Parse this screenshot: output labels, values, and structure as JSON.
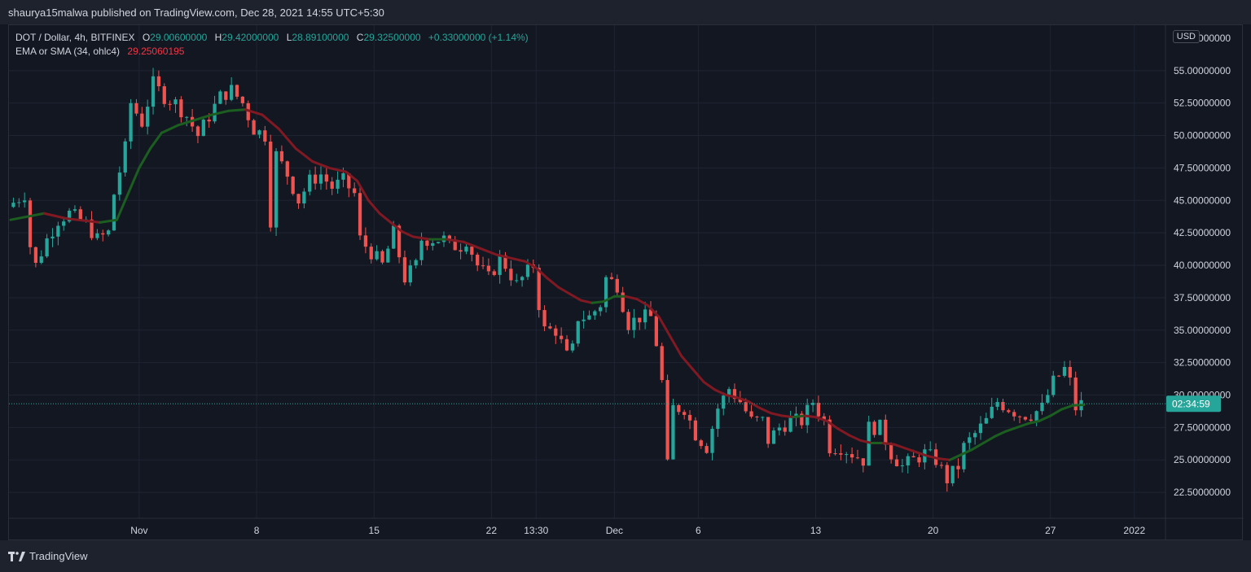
{
  "header": {
    "published": "shaurya15malwa published on TradingView.com, Dec 28, 2021 14:55 UTC+5:30"
  },
  "legend": {
    "symbol": "DOT / Dollar, 4h, BITFINEX",
    "o_label": "O",
    "o_value": "29.00600000",
    "h_label": "H",
    "h_value": "29.42000000",
    "l_label": "L",
    "l_value": "28.89100000",
    "c_label": "C",
    "c_value": "29.32500000",
    "change": "+0.33000000 (+1.14%)",
    "indicator_label": "EMA or SMA (34, ohlc4)",
    "indicator_value": "29.25060195"
  },
  "currency_badge": "USD",
  "footer": {
    "brand": "TradingView"
  },
  "colors": {
    "background": "#131722",
    "grid": "#1f2433",
    "up": "#26a69a",
    "down": "#ef5350",
    "ma_up": "#1b5e20",
    "ma_down": "#801922",
    "price_tag": "#26a69a",
    "text": "#d1d4dc"
  },
  "chart_data": {
    "type": "candlestick",
    "symbol": "DOT / Dollar",
    "interval": "4h",
    "exchange": "BITFINEX",
    "ylim": [
      20.5,
      58.5
    ],
    "y_ticks": [
      22.5,
      25,
      27.5,
      30,
      32.5,
      35,
      37.5,
      40,
      42.5,
      45,
      47.5,
      50,
      52.5,
      55
    ],
    "y_tick_labels": [
      "22.50000000",
      "25.00000000",
      "27.50000000",
      "30.00000000",
      "32.50000000",
      "35.00000000",
      "37.50000000",
      "40.00000000",
      "42.50000000",
      "45.00000000",
      "47.50000000",
      "50.00000000",
      "52.50000000",
      "55.00000000"
    ],
    "y_top_label_partial": "57.50000000",
    "x_ticks": [
      {
        "label": "Nov",
        "t": 23
      },
      {
        "label": "8",
        "t": 44
      },
      {
        "label": "15",
        "t": 65
      },
      {
        "label": "22",
        "t": 86
      },
      {
        "label": "13:30",
        "t": 94
      },
      {
        "label": "Dec",
        "t": 108
      },
      {
        "label": "6",
        "t": 123
      },
      {
        "label": "13",
        "t": 144
      },
      {
        "label": "20",
        "t": 165
      },
      {
        "label": "27",
        "t": 186
      },
      {
        "label": "2022",
        "t": 201
      }
    ],
    "close_path": [
      [
        0,
        44.5
      ],
      [
        3,
        45.5
      ],
      [
        4,
        41.5
      ],
      [
        5,
        40
      ],
      [
        7,
        42
      ],
      [
        9,
        43.5
      ],
      [
        11,
        44
      ],
      [
        14,
        43.2
      ],
      [
        16,
        42
      ],
      [
        18,
        42.5
      ],
      [
        19,
        45.5
      ],
      [
        21,
        49
      ],
      [
        22,
        52.5
      ],
      [
        24,
        51
      ],
      [
        26,
        54
      ],
      [
        28,
        53
      ],
      [
        30,
        52.5
      ],
      [
        32,
        51.5
      ],
      [
        34,
        50
      ],
      [
        36,
        51.5
      ],
      [
        38,
        53
      ],
      [
        40,
        53.5
      ],
      [
        42,
        52.5
      ],
      [
        44,
        50.5
      ],
      [
        46,
        50
      ],
      [
        47,
        43.5
      ],
      [
        48,
        48.5
      ],
      [
        50,
        47
      ],
      [
        52,
        45
      ],
      [
        54,
        46.5
      ],
      [
        56,
        47
      ],
      [
        58,
        46
      ],
      [
        60,
        46.5
      ],
      [
        62,
        45.5
      ],
      [
        63,
        42
      ],
      [
        65,
        41
      ],
      [
        67,
        40
      ],
      [
        69,
        42.5
      ],
      [
        71,
        39
      ],
      [
        73,
        40
      ],
      [
        74,
        42
      ],
      [
        76,
        42
      ],
      [
        78,
        42
      ],
      [
        79,
        41.5
      ],
      [
        81,
        41.5
      ],
      [
        82,
        42
      ],
      [
        84,
        40
      ],
      [
        86,
        39
      ],
      [
        88,
        40.5
      ],
      [
        89,
        40
      ],
      [
        91,
        38.5
      ],
      [
        93,
        39.5
      ],
      [
        94,
        40
      ],
      [
        95,
        37
      ],
      [
        96,
        35
      ],
      [
        98,
        35
      ],
      [
        100,
        33
      ],
      [
        101,
        33.5
      ],
      [
        102,
        36
      ],
      [
        104,
        36
      ],
      [
        106,
        37
      ],
      [
        107,
        39
      ],
      [
        109,
        38.5
      ],
      [
        111,
        35.5
      ],
      [
        113,
        36
      ],
      [
        115,
        36
      ],
      [
        116,
        34
      ],
      [
        117,
        31
      ],
      [
        118,
        24.5
      ],
      [
        119,
        29
      ],
      [
        121,
        29
      ],
      [
        123,
        27
      ],
      [
        125,
        26
      ],
      [
        127,
        29
      ],
      [
        129,
        30.5
      ],
      [
        131,
        29.5
      ],
      [
        133,
        28
      ],
      [
        135,
        28
      ],
      [
        136,
        26.5
      ],
      [
        138,
        27.5
      ],
      [
        140,
        28
      ],
      [
        142,
        28
      ],
      [
        144,
        29.5
      ],
      [
        146,
        28
      ],
      [
        147,
        26
      ],
      [
        149,
        26
      ],
      [
        151,
        25.5
      ],
      [
        153,
        25
      ],
      [
        154,
        27.5
      ],
      [
        156,
        27.5
      ],
      [
        158,
        25.5
      ],
      [
        160,
        24.5
      ],
      [
        162,
        25
      ],
      [
        164,
        25.5
      ],
      [
        166,
        25
      ],
      [
        168,
        23.5
      ],
      [
        170,
        24.5
      ],
      [
        171,
        26
      ],
      [
        173,
        27
      ],
      [
        175,
        28
      ],
      [
        177,
        29.5
      ],
      [
        179,
        29
      ],
      [
        181,
        28.5
      ],
      [
        183,
        28.5
      ],
      [
        185,
        29
      ],
      [
        187,
        31
      ],
      [
        189,
        32
      ],
      [
        190,
        31
      ],
      [
        191,
        29
      ],
      [
        192,
        29.3
      ]
    ],
    "ema_path": [
      [
        0,
        43.5
      ],
      [
        6,
        44
      ],
      [
        10,
        43.6
      ],
      [
        16,
        43.3
      ],
      [
        19,
        43.5
      ],
      [
        21,
        45.5
      ],
      [
        23,
        47.5
      ],
      [
        25,
        49
      ],
      [
        27,
        50.2
      ],
      [
        30,
        50.8
      ],
      [
        33,
        51.2
      ],
      [
        36,
        51.6
      ],
      [
        39,
        51.9
      ],
      [
        42,
        52
      ],
      [
        45,
        51.6
      ],
      [
        48,
        50.5
      ],
      [
        51,
        49
      ],
      [
        54,
        48
      ],
      [
        57,
        47.5
      ],
      [
        60,
        47.2
      ],
      [
        62,
        46.5
      ],
      [
        64,
        45
      ],
      [
        66,
        44
      ],
      [
        68,
        43.3
      ],
      [
        70,
        42.6
      ],
      [
        72,
        42.2
      ],
      [
        75,
        42
      ],
      [
        78,
        42
      ],
      [
        81,
        41.8
      ],
      [
        84,
        41.3
      ],
      [
        87,
        40.8
      ],
      [
        90,
        40.5
      ],
      [
        92,
        40.3
      ],
      [
        94,
        39.8
      ],
      [
        96,
        39
      ],
      [
        98,
        38.3
      ],
      [
        100,
        37.8
      ],
      [
        102,
        37.3
      ],
      [
        104,
        37.1
      ],
      [
        106,
        37.2
      ],
      [
        108,
        37.6
      ],
      [
        110,
        37.6
      ],
      [
        112,
        37.4
      ],
      [
        114,
        36.9
      ],
      [
        116,
        36
      ],
      [
        118,
        34.5
      ],
      [
        120,
        33
      ],
      [
        122,
        32
      ],
      [
        124,
        31
      ],
      [
        126,
        30.4
      ],
      [
        128,
        30
      ],
      [
        130,
        29.8
      ],
      [
        132,
        29.5
      ],
      [
        134,
        29
      ],
      [
        136,
        28.6
      ],
      [
        138,
        28.4
      ],
      [
        140,
        28.3
      ],
      [
        142,
        28.4
      ],
      [
        144,
        28.3
      ],
      [
        146,
        28
      ],
      [
        148,
        27.4
      ],
      [
        150,
        26.9
      ],
      [
        152,
        26.5
      ],
      [
        154,
        26.3
      ],
      [
        156,
        26.3
      ],
      [
        158,
        26.2
      ],
      [
        160,
        25.9
      ],
      [
        162,
        25.6
      ],
      [
        164,
        25.3
      ],
      [
        166,
        25.1
      ],
      [
        168,
        25
      ],
      [
        170,
        25.4
      ],
      [
        172,
        25.8
      ],
      [
        174,
        26.3
      ],
      [
        176,
        26.8
      ],
      [
        178,
        27.2
      ],
      [
        180,
        27.5
      ],
      [
        182,
        27.8
      ],
      [
        184,
        28
      ],
      [
        186,
        28.4
      ],
      [
        188,
        28.9
      ],
      [
        190,
        29.2
      ],
      [
        192,
        29.25
      ]
    ],
    "current_price": 29.325,
    "countdown_label": "02:34:59",
    "candle_count": 192
  }
}
